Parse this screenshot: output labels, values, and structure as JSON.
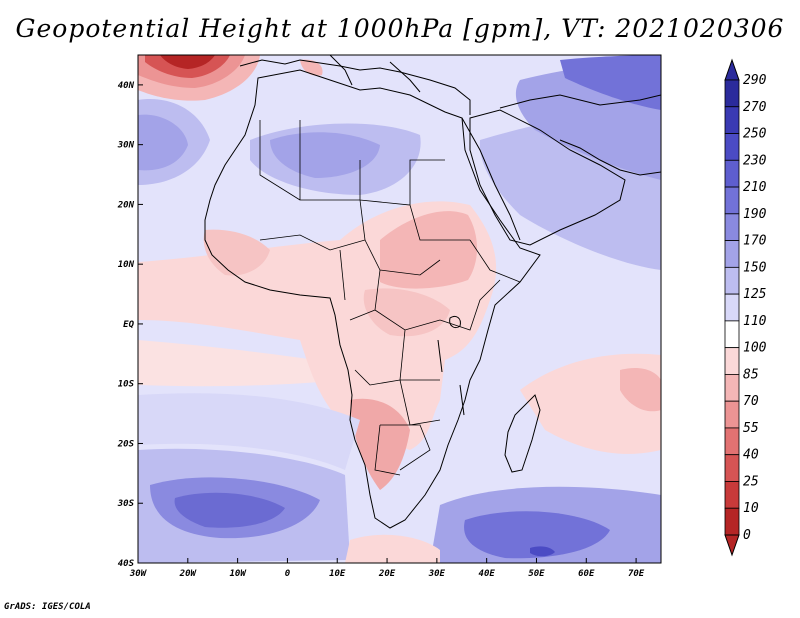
{
  "title": "Geopotential Height at 1000hPa [gpm], VT: 2021020306",
  "credit": "GrADS: IGES/COLA",
  "map": {
    "variable": "Geopotential Height at 1000hPa",
    "units": "gpm",
    "valid_time": "2021020306",
    "lon_range": [
      -30,
      75
    ],
    "lat_range": [
      -40,
      45
    ],
    "lon_ticks": [
      {
        "value": -30,
        "label": "30W"
      },
      {
        "value": -20,
        "label": "20W"
      },
      {
        "value": -10,
        "label": "10W"
      },
      {
        "value": 0,
        "label": "0"
      },
      {
        "value": 10,
        "label": "10E"
      },
      {
        "value": 20,
        "label": "20E"
      },
      {
        "value": 30,
        "label": "30E"
      },
      {
        "value": 40,
        "label": "40E"
      },
      {
        "value": 50,
        "label": "50E"
      },
      {
        "value": 60,
        "label": "60E"
      },
      {
        "value": 70,
        "label": "70E"
      }
    ],
    "lat_ticks": [
      {
        "value": 40,
        "label": "40N"
      },
      {
        "value": 30,
        "label": "30N"
      },
      {
        "value": 20,
        "label": "20N"
      },
      {
        "value": 10,
        "label": "10N"
      },
      {
        "value": 0,
        "label": "EQ"
      },
      {
        "value": -10,
        "label": "10S"
      },
      {
        "value": -20,
        "label": "20S"
      },
      {
        "value": -30,
        "label": "30S"
      },
      {
        "value": -40,
        "label": "40S"
      }
    ]
  },
  "colorbar": {
    "labels": [
      "290",
      "270",
      "250",
      "230",
      "210",
      "190",
      "170",
      "150",
      "125",
      "110",
      "100",
      "85",
      "70",
      "55",
      "40",
      "25",
      "10",
      "0"
    ],
    "colors": [
      "#2b2b9c",
      "#3a3ab3",
      "#4b4bc4",
      "#5e5ecf",
      "#7272d8",
      "#8a8ae0",
      "#a3a3e8",
      "#bdbdf0",
      "#d8d8f8",
      "#ffffff",
      "#fbd8d8",
      "#f4b6b6",
      "#ec9494",
      "#e27272",
      "#d65454",
      "#c83a3a",
      "#b52525"
    ]
  }
}
